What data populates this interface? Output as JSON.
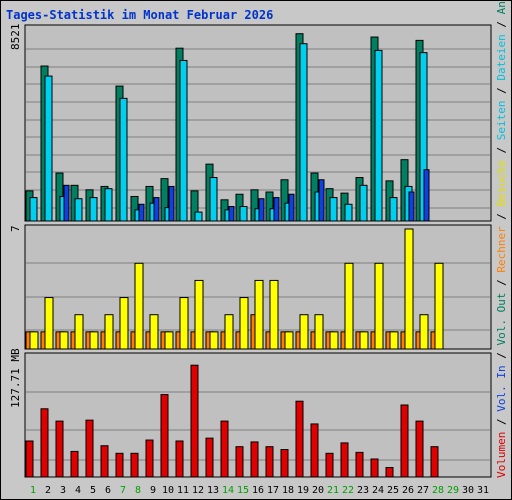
{
  "page_title": "Tages-Statistik im Monat Februar 2026",
  "colors": {
    "background": "#c8c8c8",
    "panel": "#c0c0c0",
    "grid": "#808080",
    "anfragen": "#008060",
    "dateien": "#00d0f0",
    "seiten": "#1040e0",
    "besuche": "#ffff00",
    "rechner": "#ff8000",
    "volumen": "#e00000",
    "day_normal": "#000000",
    "day_weekend": "#00a000"
  },
  "legend_top": [
    {
      "label": "Anfragen",
      "color": "#008060"
    },
    {
      "label": "Dateien",
      "color": "#00c0e0"
    },
    {
      "label": "Seiten",
      "color": "#00c0e0"
    },
    {
      "label": "Besuche",
      "color": "#e0e000"
    },
    {
      "label": "Rechner",
      "color": "#ff8000"
    },
    {
      "label": "Vol. Out",
      "color": "#008060"
    },
    {
      "label": "Vol. In",
      "color": "#1040e0"
    },
    {
      "label": "Volumen",
      "color": "#e00000"
    }
  ],
  "chart_data": [
    {
      "type": "bar",
      "name": "requests",
      "ymax_label": "8521",
      "ylim": [
        0,
        8521
      ],
      "x": [
        1,
        2,
        3,
        4,
        5,
        6,
        7,
        8,
        9,
        10,
        11,
        12,
        13,
        14,
        15,
        16,
        17,
        18,
        19,
        20,
        21,
        22,
        23,
        24,
        25,
        26,
        27,
        28
      ],
      "series": [
        {
          "name": "Anfragen",
          "values": [
            1350,
            6950,
            2150,
            1600,
            1400,
            1550,
            6050,
            1100,
            1550,
            1900,
            7750,
            1350,
            2550,
            950,
            1200,
            1400,
            1300,
            1850,
            8400,
            2150,
            1450,
            1250,
            1950,
            8250,
            1800,
            2750,
            8100,
            0
          ]
        },
        {
          "name": "Dateien",
          "values": [
            1050,
            6500,
            1100,
            1000,
            1050,
            1450,
            5500,
            500,
            800,
            600,
            7200,
            400,
            1950,
            500,
            650,
            550,
            550,
            800,
            7950,
            1300,
            1050,
            750,
            1600,
            7650,
            1050,
            1550,
            7550,
            0
          ]
        },
        {
          "name": "Seiten",
          "values": [
            0,
            0,
            1600,
            0,
            0,
            0,
            0,
            750,
            1050,
            1550,
            0,
            0,
            0,
            650,
            0,
            1000,
            1050,
            1200,
            0,
            1850,
            0,
            0,
            0,
            0,
            0,
            1300,
            2300,
            0
          ]
        }
      ]
    },
    {
      "type": "bar",
      "name": "visits",
      "ymax_label": "7",
      "ylim": [
        0,
        7
      ],
      "x": [
        1,
        2,
        3,
        4,
        5,
        6,
        7,
        8,
        9,
        10,
        11,
        12,
        13,
        14,
        15,
        16,
        17,
        18,
        19,
        20,
        21,
        22,
        23,
        24,
        25,
        26,
        27,
        28
      ],
      "series": [
        {
          "name": "Besuche",
          "values": [
            1,
            3,
            1,
            2,
            1,
            2,
            3,
            5,
            2,
            1,
            3,
            4,
            1,
            2,
            3,
            4,
            4,
            1,
            2,
            2,
            1,
            5,
            1,
            5,
            1,
            7,
            2,
            5
          ]
        },
        {
          "name": "Rechner",
          "values": [
            1,
            1,
            1,
            1,
            1,
            1,
            1,
            1,
            1,
            1,
            1,
            1,
            1,
            1,
            1,
            2,
            1,
            1,
            1,
            1,
            1,
            1,
            1,
            1,
            1,
            1,
            1,
            1
          ]
        }
      ]
    },
    {
      "type": "bar",
      "name": "volume",
      "ymax_label": "127.71 MB",
      "ylim": [
        0,
        127.71
      ],
      "x": [
        1,
        2,
        3,
        4,
        5,
        6,
        7,
        8,
        9,
        10,
        11,
        12,
        13,
        14,
        15,
        16,
        17,
        18,
        19,
        20,
        21,
        22,
        23,
        24,
        25,
        26,
        27,
        28
      ],
      "series": [
        {
          "name": "Volumen",
          "values": [
            38,
            72,
            59,
            27,
            60,
            33,
            25,
            25,
            39,
            87,
            38,
            118,
            41,
            59,
            32,
            37,
            32,
            29,
            80,
            56,
            25,
            36,
            26,
            19,
            10,
            76,
            59,
            32
          ]
        }
      ]
    }
  ],
  "days": [
    "1",
    "2",
    "3",
    "4",
    "5",
    "6",
    "7",
    "8",
    "9",
    "10",
    "11",
    "12",
    "13",
    "14",
    "15",
    "16",
    "17",
    "18",
    "19",
    "20",
    "21",
    "22",
    "23",
    "24",
    "25",
    "26",
    "27",
    "28",
    "29",
    "30",
    "31"
  ],
  "weekend_days": [
    1,
    7,
    8,
    14,
    15,
    21,
    22,
    28,
    29
  ]
}
